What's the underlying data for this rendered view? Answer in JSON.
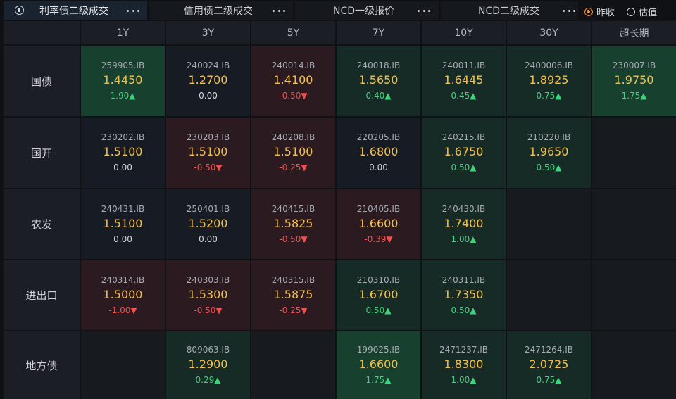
{
  "tabs": [
    {
      "label": "利率债二级成交",
      "active": true
    },
    {
      "label": "信用债二级成交",
      "active": false
    },
    {
      "label": "NCD一级报价",
      "active": false
    },
    {
      "label": "NCD二级成交",
      "active": false
    }
  ],
  "radios": [
    {
      "label": "昨收",
      "checked": true
    },
    {
      "label": "估值",
      "checked": false
    }
  ],
  "columns": [
    "1Y",
    "3Y",
    "5Y",
    "7Y",
    "10Y",
    "30Y",
    "超长期"
  ],
  "rows": [
    {
      "name": "国债",
      "cells": [
        {
          "code": "259905.IB",
          "yield": "1.4450",
          "chg": "1.90▲",
          "dir": "up",
          "bg": "green"
        },
        {
          "code": "240024.IB",
          "yield": "1.2700",
          "chg": "0.00",
          "dir": "flat",
          "bg": "navy"
        },
        {
          "code": "240014.IB",
          "yield": "1.4100",
          "chg": "-0.50▼",
          "dir": "down",
          "bg": "red"
        },
        {
          "code": "240018.IB",
          "yield": "1.5650",
          "chg": "0.40▲",
          "dir": "up",
          "bg": "dgreen"
        },
        {
          "code": "240011.IB",
          "yield": "1.6445",
          "chg": "0.45▲",
          "dir": "up",
          "bg": "dgreen"
        },
        {
          "code": "2400006.IB",
          "yield": "1.8925",
          "chg": "0.75▲",
          "dir": "up",
          "bg": "dgreen"
        },
        {
          "code": "230007.IB",
          "yield": "1.9750",
          "chg": "1.75▲",
          "dir": "up",
          "bg": "green"
        }
      ]
    },
    {
      "name": "国开",
      "cells": [
        {
          "code": "230202.IB",
          "yield": "1.5100",
          "chg": "0.00",
          "dir": "flat",
          "bg": "navy"
        },
        {
          "code": "230203.IB",
          "yield": "1.5100",
          "chg": "-0.50▼",
          "dir": "down",
          "bg": "red"
        },
        {
          "code": "240208.IB",
          "yield": "1.5100",
          "chg": "-0.25▼",
          "dir": "down",
          "bg": "red"
        },
        {
          "code": "220205.IB",
          "yield": "1.6800",
          "chg": "0.00",
          "dir": "flat",
          "bg": "navy"
        },
        {
          "code": "240215.IB",
          "yield": "1.6750",
          "chg": "0.50▲",
          "dir": "up",
          "bg": "dgreen"
        },
        {
          "code": "210220.IB",
          "yield": "1.9650",
          "chg": "0.50▲",
          "dir": "up",
          "bg": "dgreen"
        },
        null
      ]
    },
    {
      "name": "农发",
      "cells": [
        {
          "code": "240431.IB",
          "yield": "1.5100",
          "chg": "0.00",
          "dir": "flat",
          "bg": "navy"
        },
        {
          "code": "250401.IB",
          "yield": "1.5200",
          "chg": "0.00",
          "dir": "flat",
          "bg": "navy"
        },
        {
          "code": "240415.IB",
          "yield": "1.5825",
          "chg": "-0.50▼",
          "dir": "down",
          "bg": "red"
        },
        {
          "code": "210405.IB",
          "yield": "1.6600",
          "chg": "-0.39▼",
          "dir": "down",
          "bg": "red"
        },
        {
          "code": "240430.IB",
          "yield": "1.7400",
          "chg": "1.00▲",
          "dir": "up",
          "bg": "dgreen"
        },
        null,
        null
      ]
    },
    {
      "name": "进出口",
      "cells": [
        {
          "code": "240314.IB",
          "yield": "1.5000",
          "chg": "-1.00▼",
          "dir": "down",
          "bg": "red"
        },
        {
          "code": "240303.IB",
          "yield": "1.5300",
          "chg": "-0.50▼",
          "dir": "down",
          "bg": "red"
        },
        {
          "code": "240315.IB",
          "yield": "1.5875",
          "chg": "-0.25▼",
          "dir": "down",
          "bg": "red"
        },
        {
          "code": "210310.IB",
          "yield": "1.6700",
          "chg": "0.50▲",
          "dir": "up",
          "bg": "dgreen"
        },
        {
          "code": "240311.IB",
          "yield": "1.7350",
          "chg": "0.50▲",
          "dir": "up",
          "bg": "dgreen"
        },
        null,
        null
      ]
    },
    {
      "name": "地方债",
      "cells": [
        null,
        {
          "code": "809063.IB",
          "yield": "1.2900",
          "chg": "0.29▲",
          "dir": "up",
          "bg": "dgreen"
        },
        null,
        {
          "code": "199025.IB",
          "yield": "1.6600",
          "chg": "1.75▲",
          "dir": "up",
          "bg": "green"
        },
        {
          "code": "2471237.IB",
          "yield": "1.8300",
          "chg": "1.00▲",
          "dir": "up",
          "bg": "dgreen"
        },
        {
          "code": "2471264.IB",
          "yield": "2.0725",
          "chg": "0.75▲",
          "dir": "up",
          "bg": "dgreen"
        },
        null
      ]
    }
  ],
  "colors": {
    "accent": "#f28a2e",
    "yield": "#f3c14b",
    "up": "#3ed47c",
    "down": "#f0504f"
  }
}
